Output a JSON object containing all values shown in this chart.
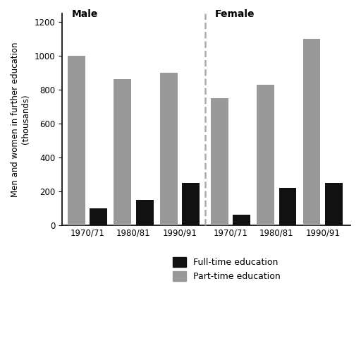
{
  "male_fulltime": [
    100,
    150,
    250
  ],
  "male_parttime": [
    1000,
    860,
    900
  ],
  "female_fulltime": [
    60,
    220,
    250
  ],
  "female_parttime": [
    750,
    830,
    1100
  ],
  "periods": [
    "1970/71",
    "1980/81",
    "1990/91"
  ],
  "ylabel_line1": "Men and women in further education",
  "ylabel_line2": "(thousands)",
  "ylim": [
    0,
    1250
  ],
  "yticks": [
    0,
    200,
    400,
    600,
    800,
    1000,
    1200
  ],
  "bar_color_fulltime": "#111111",
  "bar_color_parttime": "#999999",
  "male_label": "Male",
  "female_label": "Female",
  "legend_fulltime": "Full-time education",
  "legend_parttime": "Part-time education",
  "background_color": "#ffffff",
  "divider_color": "#aaaaaa"
}
